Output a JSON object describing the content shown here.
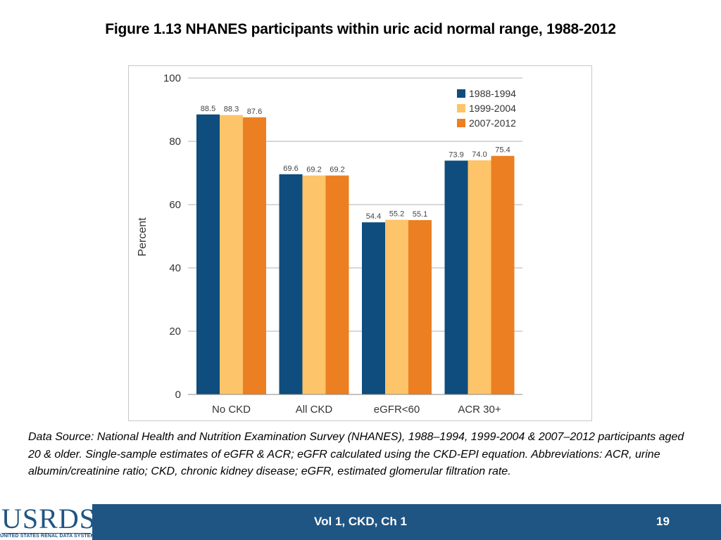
{
  "title": "Figure 1.13 NHANES participants within uric acid normal range, 1988-2012",
  "chart_data": {
    "type": "bar",
    "title": "Figure 1.13 NHANES participants within uric acid normal range, 1988-2012",
    "xlabel": "",
    "ylabel": "Percent",
    "ylim": [
      0,
      100
    ],
    "yticks": [
      0,
      20,
      40,
      60,
      80,
      100
    ],
    "grid": true,
    "legend_position": "top-right",
    "categories": [
      "No CKD",
      "All CKD",
      "eGFR<60",
      "ACR 30+"
    ],
    "series": [
      {
        "name": "1988-1994",
        "color": "#0e4d7d",
        "values": [
          88.5,
          69.6,
          54.4,
          73.9
        ],
        "labels": [
          "88.5",
          "69.6",
          "54.4",
          "73.9"
        ]
      },
      {
        "name": "1999-2004",
        "color": "#fdc46a",
        "values": [
          88.3,
          69.2,
          55.2,
          74.0
        ],
        "labels": [
          "88.3",
          "69.2",
          "55.2",
          "74.0"
        ]
      },
      {
        "name": "2007-2012",
        "color": "#ec7f22",
        "values": [
          87.6,
          69.2,
          55.1,
          75.4
        ],
        "labels": [
          "87.6",
          "69.2",
          "55.1",
          "75.4"
        ]
      }
    ]
  },
  "footnote": "Data Source: National Health and Nutrition Examination Survey (NHANES), 1988–1994, 1999-2004 & 2007–2012 participants aged 20 & older. Single-sample estimates of eGFR & ACR; eGFR calculated using the CKD-EPI equation. Abbreviations: ACR, urine albumin/creatinine ratio; CKD, chronic kidney disease; eGFR, estimated glomerular filtration rate.",
  "footer": {
    "logo_text": "USRDS",
    "logo_subtext": "UNITED STATES RENAL DATA SYSTEM",
    "center_label": "Vol 1, CKD, Ch 1",
    "page_number": "19"
  },
  "colors": {
    "footer_bg": "#1f5583",
    "grid": "#b0b0b0"
  }
}
